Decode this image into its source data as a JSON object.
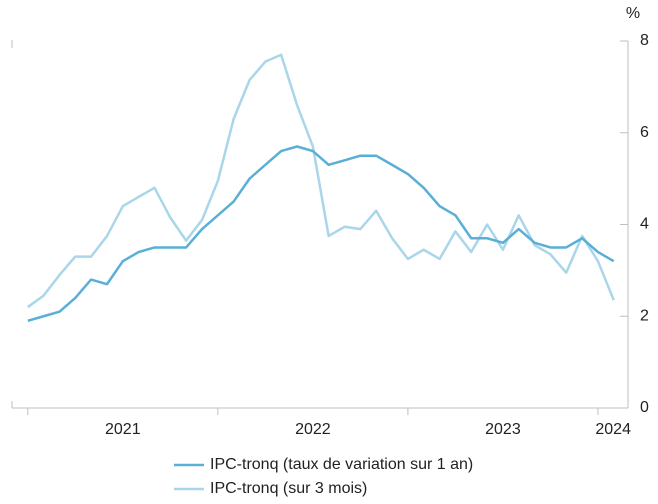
{
  "chart_data": {
    "type": "line",
    "y_unit": "%",
    "x": [
      2021,
      2021.083,
      2021.167,
      2021.25,
      2021.333,
      2021.417,
      2021.5,
      2021.583,
      2021.667,
      2021.75,
      2021.833,
      2021.917,
      2022,
      2022.083,
      2022.167,
      2022.25,
      2022.333,
      2022.417,
      2022.5,
      2022.583,
      2022.667,
      2022.75,
      2022.833,
      2022.917,
      2023,
      2023.083,
      2023.167,
      2023.25,
      2023.333,
      2023.417,
      2023.5,
      2023.583,
      2023.667,
      2023.75,
      2023.833,
      2023.917,
      2024,
      2024.083
    ],
    "series": [
      {
        "name": "IPC-tronq (taux de variation sur 1 an)",
        "color": "#5aafd6",
        "values": [
          1.9,
          2.0,
          2.1,
          2.4,
          2.8,
          2.7,
          3.2,
          3.4,
          3.5,
          3.5,
          3.5,
          3.9,
          4.2,
          4.5,
          5.0,
          5.3,
          5.6,
          5.7,
          5.6,
          5.3,
          5.4,
          5.5,
          5.5,
          5.3,
          5.1,
          4.8,
          4.4,
          4.2,
          3.7,
          3.7,
          3.6,
          3.9,
          3.6,
          3.5,
          3.5,
          3.7,
          3.4,
          3.2
        ]
      },
      {
        "name": "IPC-tronq (sur 3 mois)",
        "color": "#a9d6ea",
        "values": [
          2.2,
          2.45,
          2.9,
          3.3,
          3.3,
          3.75,
          4.4,
          4.6,
          4.8,
          4.15,
          3.65,
          4.1,
          4.95,
          6.3,
          7.15,
          7.55,
          7.7,
          6.6,
          5.7,
          3.75,
          3.95,
          3.9,
          4.3,
          3.7,
          3.25,
          3.45,
          3.25,
          3.85,
          3.4,
          4.0,
          3.45,
          4.2,
          3.55,
          3.35,
          2.95,
          3.75,
          3.2,
          2.35
        ]
      }
    ],
    "xlim": [
      2020.917,
      2024.158
    ],
    "xticks": [
      {
        "value": 2021.5,
        "label": "2021"
      },
      {
        "value": 2022.5,
        "label": "2022"
      },
      {
        "value": 2023.5,
        "label": "2023"
      },
      {
        "value": 2024.08,
        "label": "2024"
      }
    ],
    "x_boundaries": [
      2021,
      2022,
      2023,
      2024
    ],
    "ylim": [
      0,
      8
    ],
    "yticks": [
      0,
      2,
      4,
      6,
      8
    ],
    "y_axis_side": "right",
    "legend": "bottom"
  }
}
